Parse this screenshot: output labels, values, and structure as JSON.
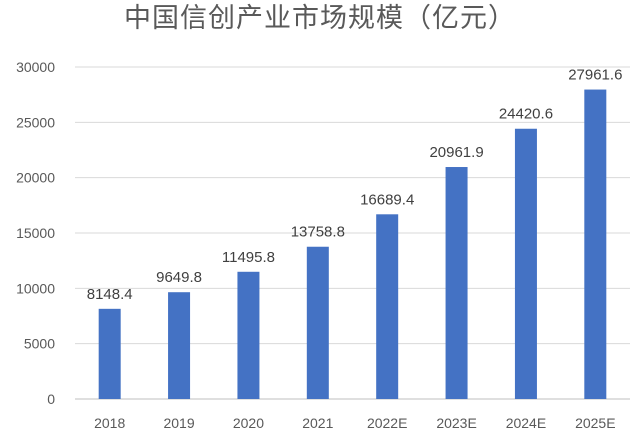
{
  "chart_data": {
    "type": "bar",
    "title": "中国信创产业市场规模（亿元）",
    "xlabel": "",
    "ylabel": "",
    "categories": [
      "2018",
      "2019",
      "2020",
      "2021",
      "2022E",
      "2023E",
      "2024E",
      "2025E"
    ],
    "values": [
      8148.4,
      9649.8,
      11495.8,
      13758.8,
      16689.4,
      20961.9,
      24420.6,
      27961.6
    ],
    "data_labels": [
      "8148.4",
      "9649.8",
      "11495.8",
      "13758.8",
      "16689.4",
      "20961.9",
      "24420.6",
      "27961.6"
    ],
    "ylim": [
      0,
      30000
    ],
    "yticks": [
      0,
      5000,
      10000,
      15000,
      20000,
      25000,
      30000
    ],
    "grid": true,
    "legend": "none",
    "bar_color": "#4472C4",
    "grid_color": "#D9D9D9"
  }
}
